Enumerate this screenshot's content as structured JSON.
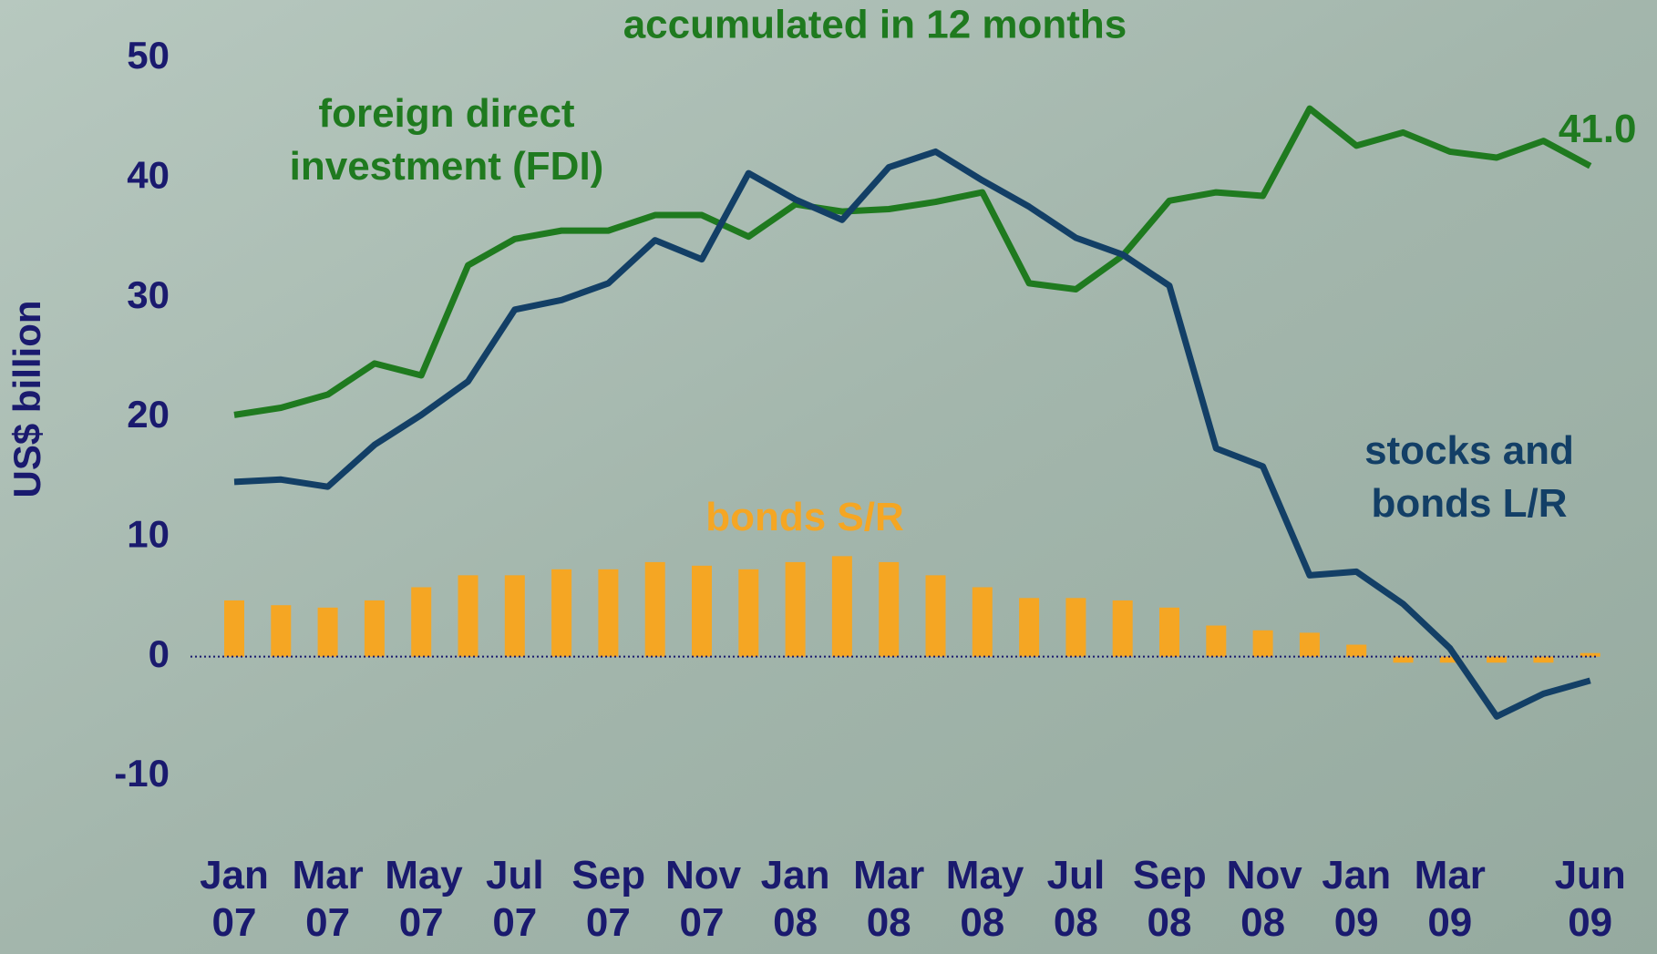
{
  "chart_data": {
    "type": "line-bar",
    "title": "accumulated in 12 months",
    "y_label": "US$ billion",
    "categories": [
      "Jan 07",
      null,
      "Mar 07",
      null,
      "May 07",
      null,
      "Jul 07",
      null,
      "Sep 07",
      null,
      "Nov 07",
      null,
      "Jan 08",
      null,
      "Mar 08",
      null,
      "May 08",
      null,
      "Jul 08",
      null,
      "Sep 08",
      null,
      "Nov 08",
      null,
      "Jan 09",
      null,
      "Mar 09",
      null,
      null,
      "Jun 09"
    ],
    "ylim": [
      -10,
      50
    ],
    "yticks": [
      -10,
      0,
      10,
      20,
      30,
      40,
      50
    ],
    "series": [
      {
        "name": "foreign direct investment (FDI)",
        "kind": "line",
        "color": "#1f7a1f",
        "values": [
          20.2,
          20.8,
          21.9,
          24.5,
          23.5,
          32.7,
          34.9,
          35.6,
          35.6,
          36.9,
          36.9,
          35.1,
          37.8,
          37.2,
          37.4,
          38.0,
          38.8,
          31.2,
          30.7,
          33.5,
          38.1,
          38.8,
          38.5,
          45.8,
          42.7,
          43.8,
          42.2,
          41.7,
          43.1,
          41.0
        ],
        "value_labels": [
          null,
          null,
          null,
          null,
          null,
          null,
          null,
          null,
          null,
          null,
          null,
          null,
          null,
          null,
          null,
          null,
          null,
          null,
          null,
          null,
          null,
          null,
          null,
          null,
          null,
          null,
          null,
          null,
          null,
          "41.0"
        ]
      },
      {
        "name": "stocks and bonds L/R",
        "kind": "line",
        "color": "#133f66",
        "values": [
          14.6,
          14.8,
          14.2,
          17.7,
          20.2,
          23.0,
          29.0,
          29.8,
          31.2,
          34.8,
          33.2,
          40.4,
          38.2,
          36.5,
          40.9,
          42.2,
          39.8,
          37.6,
          35.0,
          33.6,
          31.0,
          17.4,
          15.9,
          6.8,
          7.1,
          4.4,
          0.7,
          -5.0,
          -3.1,
          -2.0
        ]
      },
      {
        "name": "bonds S/R",
        "kind": "bar",
        "color": "#f5a623",
        "values": [
          4.7,
          4.3,
          4.1,
          4.7,
          5.8,
          6.8,
          6.8,
          7.3,
          7.3,
          7.9,
          7.6,
          7.3,
          7.9,
          8.4,
          7.9,
          6.8,
          5.8,
          4.9,
          4.9,
          4.7,
          4.1,
          2.6,
          2.2,
          2.0,
          1.0,
          -0.5,
          -0.5,
          -0.5,
          -0.5,
          0.3
        ]
      }
    ]
  }
}
